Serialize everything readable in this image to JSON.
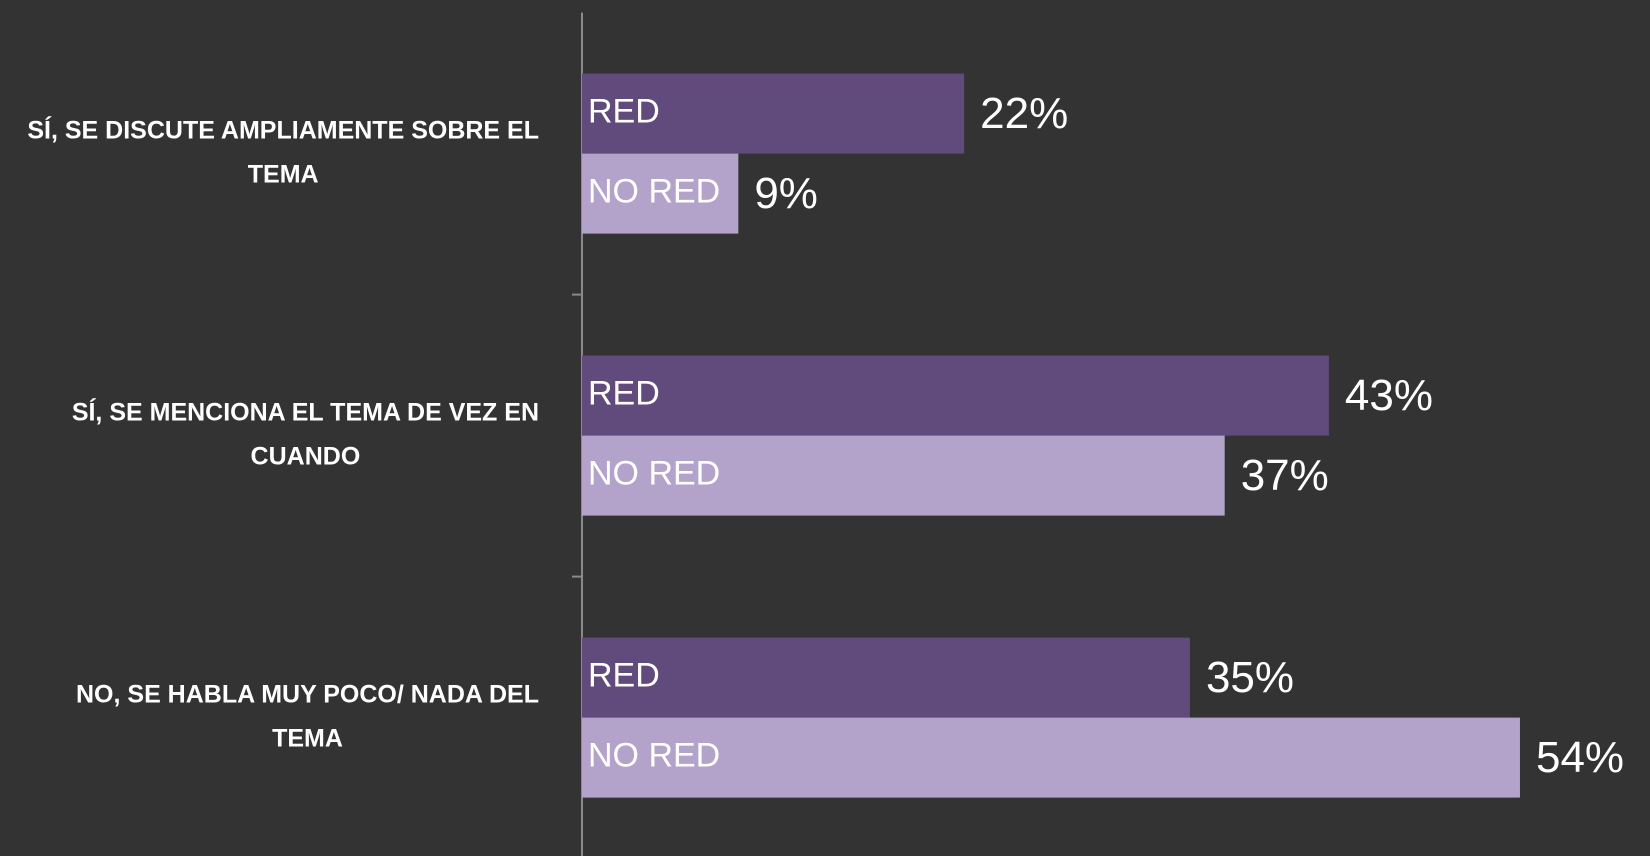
{
  "chart_data": {
    "type": "bar",
    "orientation": "horizontal",
    "categories": [
      "SÍ, SE DISCUTE AMPLIAMENTE SOBRE EL TEMA",
      "SÍ, SE MENCIONA EL TEMA DE VEZ EN CUANDO",
      "NO, SE HABLA MUY POCO/ NADA DEL TEMA"
    ],
    "series": [
      {
        "name": "RED",
        "color": "#614a7c",
        "values": [
          22,
          43,
          35
        ],
        "value_labels": [
          "22%",
          "43%",
          "35%"
        ]
      },
      {
        "name": "NO RED",
        "color": "#b3a2c9",
        "values": [
          9,
          37,
          54
        ],
        "value_labels": [
          "9%",
          "37%",
          "54%"
        ]
      }
    ]
  }
}
